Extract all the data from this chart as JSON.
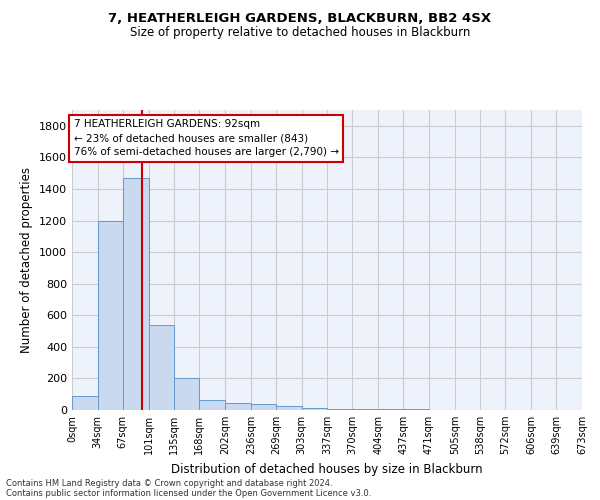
{
  "title": "7, HEATHERLEIGH GARDENS, BLACKBURN, BB2 4SX",
  "subtitle": "Size of property relative to detached houses in Blackburn",
  "xlabel": "Distribution of detached houses by size in Blackburn",
  "ylabel": "Number of detached properties",
  "footnote1": "Contains HM Land Registry data © Crown copyright and database right 2024.",
  "footnote2": "Contains public sector information licensed under the Open Government Licence v3.0.",
  "bar_color": "#c9d9f0",
  "bar_edge_color": "#6699cc",
  "grid_color": "#cccccc",
  "background_color": "#eef2fa",
  "annotation_box_color": "#cc0000",
  "property_line_color": "#cc0000",
  "property_size": 92,
  "annotation_text": "7 HEATHERLEIGH GARDENS: 92sqm\n← 23% of detached houses are smaller (843)\n76% of semi-detached houses are larger (2,790) →",
  "bin_edges": [
    0,
    34,
    67,
    101,
    135,
    168,
    202,
    236,
    269,
    303,
    337,
    370,
    404,
    437,
    471,
    505,
    538,
    572,
    606,
    639,
    673
  ],
  "bin_heights": [
    90,
    1200,
    1470,
    540,
    205,
    65,
    47,
    37,
    28,
    12,
    8,
    7,
    5,
    4,
    3,
    2,
    1,
    1,
    0,
    0
  ],
  "ylim": [
    0,
    1900
  ],
  "yticks": [
    0,
    200,
    400,
    600,
    800,
    1000,
    1200,
    1400,
    1600,
    1800
  ],
  "figsize": [
    6.0,
    5.0
  ],
  "dpi": 100
}
